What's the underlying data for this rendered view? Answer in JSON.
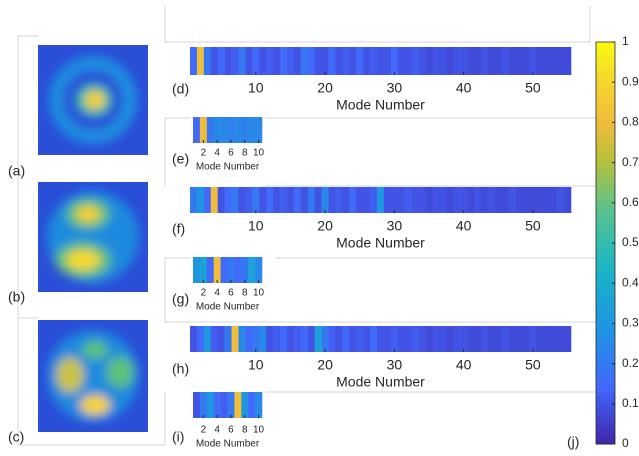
{
  "image_panels": [
    {
      "label": "(a)"
    },
    {
      "label": "(b)"
    },
    {
      "label": "(c)"
    }
  ],
  "chart_data": [
    {
      "type": "heatmap",
      "label": "(d)",
      "xlabel": "Mode Number",
      "xlim": [
        0.5,
        55.5
      ],
      "xticks": [
        10,
        20,
        30,
        40,
        50
      ],
      "values": [
        0.15,
        0.8,
        0.2,
        0.1,
        0.15,
        0.1,
        0.12,
        0.2,
        0.1,
        0.15,
        0.1,
        0.12,
        0.1,
        0.15,
        0.12,
        0.1,
        0.2,
        0.15,
        0.1,
        0.1,
        0.15,
        0.1,
        0.12,
        0.1,
        0.15,
        0.1,
        0.12,
        0.1,
        0.1,
        0.15,
        0.1,
        0.1,
        0.12,
        0.1,
        0.08,
        0.1,
        0.1,
        0.08,
        0.1,
        0.1,
        0.08,
        0.08,
        0.1,
        0.08,
        0.08,
        0.1,
        0.08,
        0.08,
        0.08,
        0.1,
        0.08,
        0.08,
        0.08,
        0.08,
        0.08
      ]
    },
    {
      "type": "heatmap",
      "label": "(e)",
      "xlabel": "Mode Number",
      "xlim": [
        0.5,
        10.5
      ],
      "xticks": [
        2,
        4,
        6,
        8,
        10
      ],
      "values": [
        0.15,
        0.8,
        0.2,
        0.25,
        0.25,
        0.22,
        0.25,
        0.22,
        0.25,
        0.25
      ]
    },
    {
      "type": "heatmap",
      "label": "(f)",
      "xlabel": "Mode Number",
      "xlim": [
        0.5,
        55.5
      ],
      "xticks": [
        10,
        20,
        30,
        40,
        50
      ],
      "values": [
        0.2,
        0.3,
        0.15,
        0.8,
        0.1,
        0.15,
        0.2,
        0.1,
        0.12,
        0.2,
        0.1,
        0.15,
        0.1,
        0.12,
        0.1,
        0.15,
        0.1,
        0.2,
        0.1,
        0.25,
        0.1,
        0.12,
        0.1,
        0.15,
        0.1,
        0.1,
        0.12,
        0.3,
        0.1,
        0.1,
        0.1,
        0.12,
        0.1,
        0.1,
        0.08,
        0.1,
        0.1,
        0.08,
        0.1,
        0.1,
        0.08,
        0.1,
        0.08,
        0.1,
        0.08,
        0.08,
        0.1,
        0.08,
        0.08,
        0.08,
        0.08,
        0.08,
        0.08,
        0.1,
        0.08
      ]
    },
    {
      "type": "heatmap",
      "label": "(g)",
      "xlabel": "Mode Number",
      "xlim": [
        0.5,
        10.5
      ],
      "xticks": [
        2,
        4,
        6,
        8,
        10
      ],
      "values": [
        0.3,
        0.35,
        0.15,
        0.8,
        0.15,
        0.2,
        0.15,
        0.2,
        0.35,
        0.25
      ]
    },
    {
      "type": "heatmap",
      "label": "(h)",
      "xlabel": "Mode Number",
      "xlim": [
        0.5,
        55.5
      ],
      "xticks": [
        10,
        20,
        30,
        40,
        50
      ],
      "values": [
        0.1,
        0.15,
        0.3,
        0.12,
        0.1,
        0.2,
        0.8,
        0.25,
        0.15,
        0.2,
        0.25,
        0.1,
        0.12,
        0.15,
        0.1,
        0.12,
        0.15,
        0.1,
        0.35,
        0.2,
        0.12,
        0.1,
        0.15,
        0.1,
        0.12,
        0.1,
        0.15,
        0.1,
        0.1,
        0.12,
        0.1,
        0.1,
        0.12,
        0.1,
        0.08,
        0.1,
        0.1,
        0.08,
        0.1,
        0.1,
        0.08,
        0.08,
        0.1,
        0.08,
        0.08,
        0.1,
        0.08,
        0.08,
        0.08,
        0.1,
        0.08,
        0.08,
        0.08,
        0.08,
        0.08
      ]
    },
    {
      "type": "heatmap",
      "label": "(i)",
      "xlabel": "Mode Number",
      "xlim": [
        0.5,
        10.5
      ],
      "xticks": [
        2,
        4,
        6,
        8,
        10
      ],
      "values": [
        0.1,
        0.2,
        0.3,
        0.15,
        0.12,
        0.2,
        0.8,
        0.3,
        0.15,
        0.25
      ]
    },
    {
      "type": "colorbar",
      "label": "(j)",
      "colormap": "parula",
      "ylim": [
        0,
        1
      ],
      "yticks": [
        0,
        0.1,
        0.2,
        0.3,
        0.4,
        0.5,
        0.6,
        0.7,
        0.8,
        0.9,
        1
      ]
    }
  ]
}
